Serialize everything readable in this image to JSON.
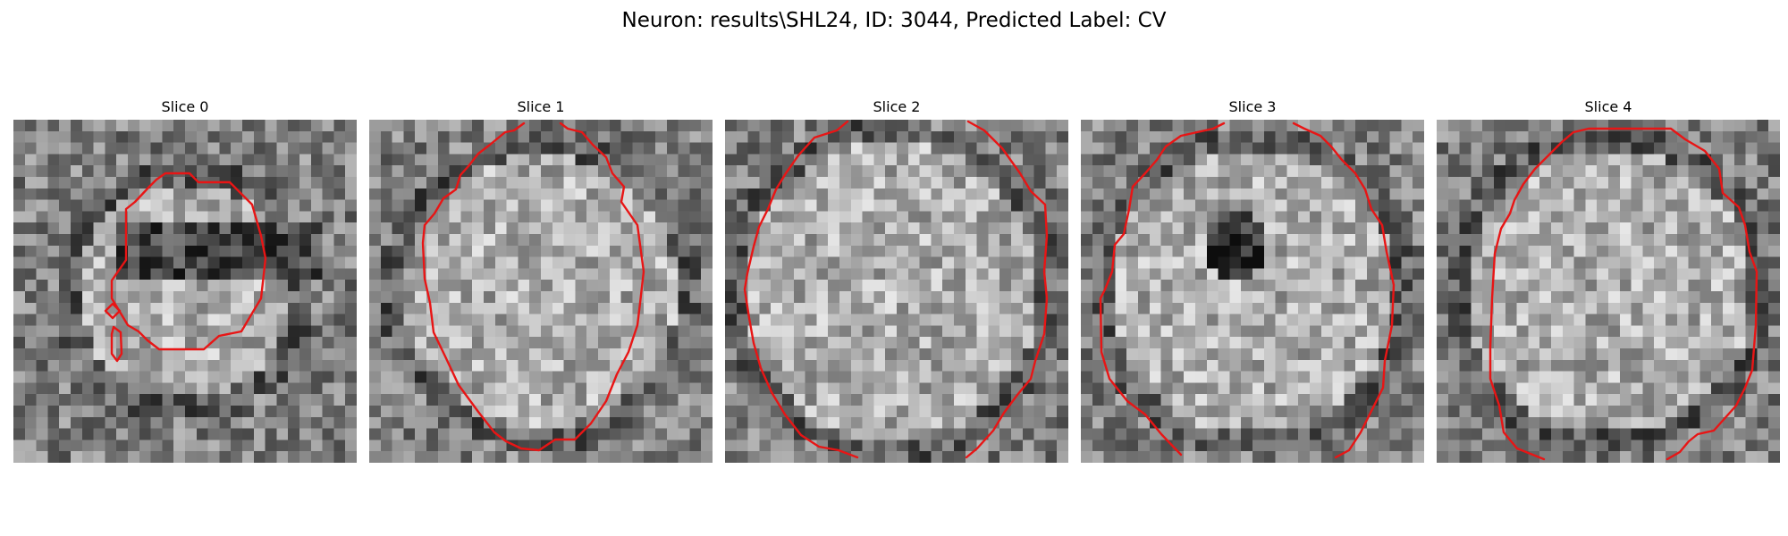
{
  "figure": {
    "title": "Neuron: results\\SHL24, ID: 3044, Predicted Label: CV",
    "contour_color": "#e81515",
    "colormap": "gray"
  },
  "panels": [
    {
      "title": "Slice 0"
    },
    {
      "title": "Slice 1"
    },
    {
      "title": "Slice 2"
    },
    {
      "title": "Slice 3"
    },
    {
      "title": "Slice 4"
    }
  ]
}
